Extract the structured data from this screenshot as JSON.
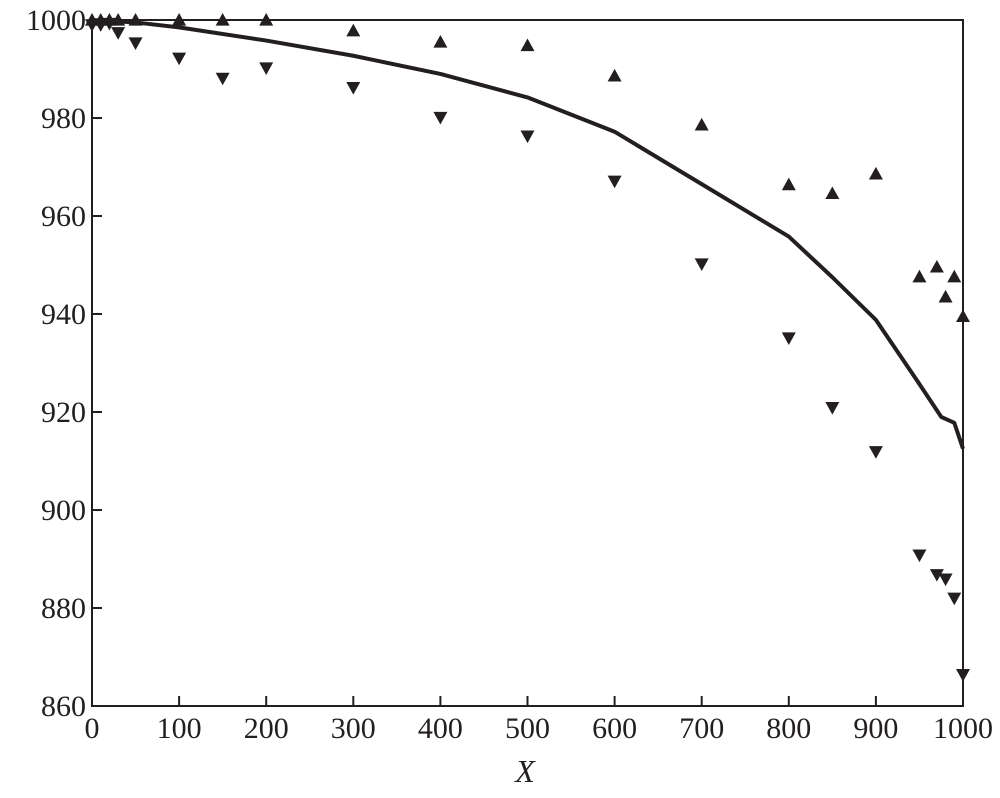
{
  "chart_data": {
    "type": "scatter",
    "title": "",
    "xlabel": "X",
    "ylabel": "",
    "xlim": [
      0,
      1000
    ],
    "ylim": [
      860,
      1000
    ],
    "x_ticks": [
      0,
      100,
      200,
      300,
      400,
      500,
      600,
      700,
      800,
      900,
      1000
    ],
    "y_ticks": [
      860,
      880,
      900,
      920,
      940,
      960,
      980,
      1000
    ],
    "grid": false,
    "legend": "none",
    "colors": {
      "ink": "#231f20"
    },
    "series": [
      {
        "marker": "triangle-up",
        "x": [
          0,
          10,
          20,
          30,
          50,
          100,
          150,
          200,
          300,
          400,
          500,
          600,
          700,
          800,
          850,
          900,
          950,
          970,
          980,
          990,
          1000
        ],
        "y": [
          1000,
          1000,
          1000,
          1000,
          1000,
          1000,
          1000,
          1000,
          997.8,
          995.5,
          994.8,
          988.6,
          978.6,
          966.4,
          964.6,
          968.6,
          947.6,
          949.6,
          943.5,
          947.6,
          939.5
        ]
      },
      {
        "marker": "triangle-down",
        "x": [
          0,
          10,
          20,
          30,
          50,
          100,
          150,
          200,
          300,
          400,
          500,
          600,
          700,
          800,
          850,
          900,
          950,
          970,
          980,
          990,
          1000
        ],
        "y": [
          999,
          999,
          999.3,
          997.4,
          995.3,
          992.2,
          988.1,
          990.2,
          986.2,
          980.1,
          976.3,
          967.1,
          950.2,
          935.1,
          920.9,
          911.9,
          890.8,
          886.8,
          885.9,
          882,
          866.4
        ]
      },
      {
        "marker": "line",
        "x": [
          0,
          50,
          100,
          200,
          300,
          400,
          500,
          600,
          700,
          800,
          850,
          900,
          950,
          975,
          990,
          1000
        ],
        "y": [
          1000,
          999.5,
          998.5,
          995.8,
          992.7,
          989,
          984.2,
          977.2,
          966.5,
          955.8,
          947.5,
          938.8,
          925.7,
          919,
          917.8,
          912.5
        ]
      }
    ]
  }
}
